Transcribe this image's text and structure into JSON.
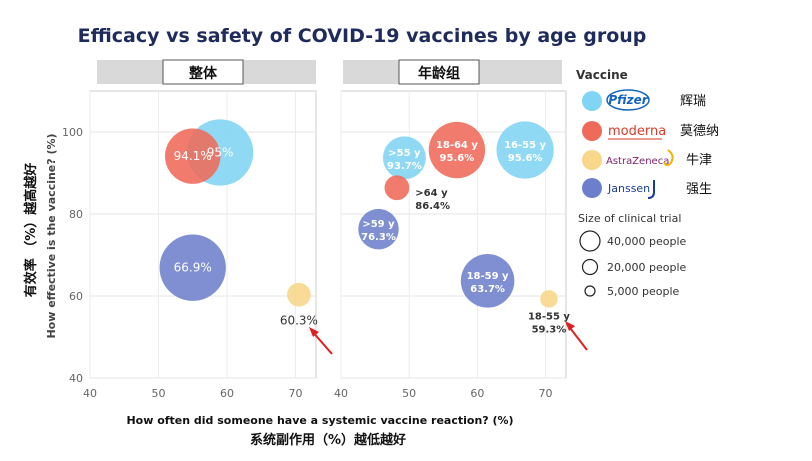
{
  "chart_data": {
    "type": "scatter",
    "title": "Efficacy vs safety of COVID-19 vaccines by age group",
    "xlabel": "How often did someone have a systemic vaccine reaction? (%)",
    "xlabel_cn": "系统副作用（%）越低越好",
    "ylabel": "How effective is the vaccine? (%)",
    "ylabel_cn": "有效率 （%）越高越好",
    "panels": [
      {
        "title": "整体",
        "xlim": [
          40,
          73
        ],
        "ylim": [
          40,
          110
        ],
        "xticks": [
          "40",
          "50",
          "60",
          "70"
        ],
        "yticks": [
          "40",
          "60",
          "80",
          "100"
        ],
        "points": [
          {
            "vaccine": "Pfizer",
            "x": 59,
            "y": 95,
            "trial_size": 43000,
            "label1": "95%",
            "label2": "",
            "label_pos": "inside"
          },
          {
            "vaccine": "Moderna",
            "x": 55,
            "y": 94.1,
            "trial_size": 30000,
            "label1": "94.1%",
            "label2": "",
            "label_pos": "inside"
          },
          {
            "vaccine": "Janssen",
            "x": 55,
            "y": 66.9,
            "trial_size": 43000,
            "label1": "66.9%",
            "label2": "",
            "label_pos": "inside"
          },
          {
            "vaccine": "AstraZeneca",
            "x": 70.5,
            "y": 60.3,
            "trial_size": 5500,
            "label1": "60.3%",
            "label2": "",
            "label_pos": "below"
          }
        ]
      },
      {
        "title": "年龄组",
        "xlim": [
          40,
          73
        ],
        "ylim": [
          40,
          110
        ],
        "xticks": [
          "40",
          "50",
          "60",
          "70"
        ],
        "yticks": [
          "40",
          "60",
          "80",
          "100"
        ],
        "points": [
          {
            "vaccine": "Pfizer",
            "x": 49.3,
            "y": 93.7,
            "trial_size": 18000,
            "label1": ">55 y",
            "label2": "93.7%",
            "label_pos": "inside"
          },
          {
            "vaccine": "Pfizer",
            "x": 67,
            "y": 95.6,
            "trial_size": 32000,
            "label1": "16-55 y",
            "label2": "95.6%",
            "label_pos": "inside"
          },
          {
            "vaccine": "Moderna",
            "x": 57,
            "y": 95.6,
            "trial_size": 31000,
            "label1": "18-64 y",
            "label2": "95.6%",
            "label_pos": "inside"
          },
          {
            "vaccine": "Moderna",
            "x": 48.2,
            "y": 86.4,
            "trial_size": 6000,
            "label1": ">64 y",
            "label2": "86.4%",
            "label_pos": "right"
          },
          {
            "vaccine": "Janssen",
            "x": 45.5,
            "y": 76.3,
            "trial_size": 16000,
            "label1": ">59 y",
            "label2": "76.3%",
            "label_pos": "inside"
          },
          {
            "vaccine": "Janssen",
            "x": 61.5,
            "y": 63.7,
            "trial_size": 28000,
            "label1": "18-59 y",
            "label2": "63.7%",
            "label_pos": "inside"
          },
          {
            "vaccine": "AstraZeneca",
            "x": 70.5,
            "y": 59.3,
            "trial_size": 3000,
            "label1": "18-55 y",
            "label2": "59.3%",
            "label_pos": "below"
          }
        ]
      }
    ],
    "colors": {
      "Pfizer": "#80d4f4",
      "Moderna": "#ef6a5a",
      "AstraZeneca": "#f8d68a",
      "Janssen": "#6d7fcc"
    }
  },
  "legend": {
    "title": "Vaccine",
    "items": [
      {
        "brand": "Pfizer",
        "cn": "辉瑞",
        "color": "#80d4f4"
      },
      {
        "brand": "moderna",
        "cn": "莫德纳",
        "color": "#ef6a5a"
      },
      {
        "brand": "AstraZeneca",
        "cn": "牛津",
        "color": "#f8d68a"
      },
      {
        "brand": "Janssen",
        "cn": "强生",
        "color": "#6d7fcc"
      }
    ],
    "size_title": "Size of clinical trial",
    "sizes": [
      {
        "label": "40,000 people",
        "people": 40000
      },
      {
        "label": "20,000 people",
        "people": 20000
      },
      {
        "label": "5,000 people",
        "people": 5000
      }
    ]
  }
}
